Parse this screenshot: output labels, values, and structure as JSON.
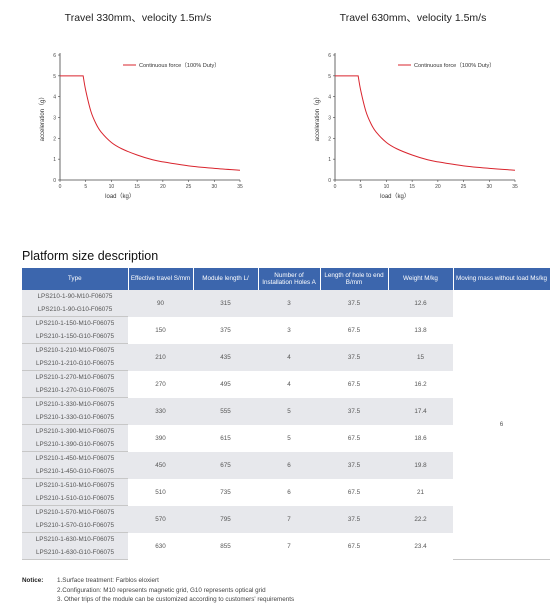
{
  "charts": [
    {
      "title": "Travel 330mm、velocity 1.5m/s",
      "legend": "Continuous force（100% Duty）",
      "ylabel": "acceleration（g）",
      "xlabel": "load（kg）",
      "curve_color": "#d9252e"
    },
    {
      "title": "Travel 630mm、velocity 1.5m/s",
      "legend": "Continuous force（100% Duty）",
      "ylabel": "acceleration（g）",
      "xlabel": "load（kg）",
      "curve_color": "#d9252e"
    }
  ],
  "chart_data": [
    {
      "type": "line",
      "title": "Travel 330mm、velocity 1.5m/s",
      "xlabel": "load（kg）",
      "ylabel": "acceleration（g）",
      "xlim": [
        0,
        35
      ],
      "ylim": [
        0,
        6
      ],
      "xticks": [
        "0",
        "5",
        "10",
        "15",
        "20",
        "25",
        "30",
        "35"
      ],
      "yticks": [
        "0",
        "1",
        "2",
        "3",
        "4",
        "5",
        "6"
      ],
      "legend_position": "top-right",
      "grid": false,
      "series": [
        {
          "name": "Continuous force（100% Duty）",
          "x": [
            0,
            4.5,
            5,
            6,
            7,
            8,
            10,
            12,
            15,
            18,
            20,
            25,
            30,
            35
          ],
          "y": [
            5,
            5,
            4.3,
            3.3,
            2.7,
            2.3,
            1.8,
            1.5,
            1.2,
            0.97,
            0.87,
            0.68,
            0.56,
            0.47
          ]
        }
      ]
    },
    {
      "type": "line",
      "title": "Travel 630mm、velocity 1.5m/s",
      "xlabel": "load（kg）",
      "ylabel": "acceleration（g）",
      "xlim": [
        0,
        35
      ],
      "ylim": [
        0,
        6
      ],
      "xticks": [
        "0",
        "5",
        "10",
        "15",
        "20",
        "25",
        "30",
        "35"
      ],
      "yticks": [
        "0",
        "1",
        "2",
        "3",
        "4",
        "5",
        "6"
      ],
      "legend_position": "top-right",
      "grid": false,
      "series": [
        {
          "name": "Continuous force（100% Duty）",
          "x": [
            0,
            4.5,
            5,
            6,
            7,
            8,
            10,
            12,
            15,
            18,
            20,
            25,
            30,
            35
          ],
          "y": [
            5,
            5,
            4.3,
            3.3,
            2.7,
            2.3,
            1.8,
            1.5,
            1.2,
            0.97,
            0.87,
            0.68,
            0.56,
            0.47
          ]
        }
      ]
    }
  ],
  "section_title": "Platform size description",
  "table": {
    "headers": [
      "Type",
      "Effective travel S/mm",
      "Module length L/",
      "Number of Installation Holes A",
      "Length of hole to end B/mm",
      "Weight M/kg",
      "Moving mass without load Ms/kg"
    ],
    "moving_mass": "6",
    "groups": [
      {
        "types": [
          "LPS210-1-90-M10-F06075",
          "LPS210-1-90-G10-F06075"
        ],
        "travel": "90",
        "length": "315",
        "holes": "3",
        "hole_end": "37.5",
        "weight": "12.6"
      },
      {
        "types": [
          "LPS210-1-150-M10-F06075",
          "LPS210-1-150-G10-F06075"
        ],
        "travel": "150",
        "length": "375",
        "holes": "3",
        "hole_end": "67.5",
        "weight": "13.8"
      },
      {
        "types": [
          "LPS210-1-210-M10-F06075",
          "LPS210-1-210-G10-F06075"
        ],
        "travel": "210",
        "length": "435",
        "holes": "4",
        "hole_end": "37.5",
        "weight": "15"
      },
      {
        "types": [
          "LPS210-1-270-M10-F06075",
          "LPS210-1-270-G10-F06075"
        ],
        "travel": "270",
        "length": "495",
        "holes": "4",
        "hole_end": "67.5",
        "weight": "16.2"
      },
      {
        "types": [
          "LPS210-1-330-M10-F06075",
          "LPS210-1-330-G10-F06075"
        ],
        "travel": "330",
        "length": "555",
        "holes": "5",
        "hole_end": "37.5",
        "weight": "17.4"
      },
      {
        "types": [
          "LPS210-1-390-M10-F06075",
          "LPS210-1-390-G10-F06075"
        ],
        "travel": "390",
        "length": "615",
        "holes": "5",
        "hole_end": "67.5",
        "weight": "18.6"
      },
      {
        "types": [
          "LPS210-1-450-M10-F06075",
          "LPS210-1-450-G10-F06075"
        ],
        "travel": "450",
        "length": "675",
        "holes": "6",
        "hole_end": "37.5",
        "weight": "19.8"
      },
      {
        "types": [
          "LPS210-1-510-M10-F06075",
          "LPS210-1-510-G10-F06075"
        ],
        "travel": "510",
        "length": "735",
        "holes": "6",
        "hole_end": "67.5",
        "weight": "21"
      },
      {
        "types": [
          "LPS210-1-570-M10-F06075",
          "LPS210-1-570-G10-F06075"
        ],
        "travel": "570",
        "length": "795",
        "holes": "7",
        "hole_end": "37.5",
        "weight": "22.2"
      },
      {
        "types": [
          "LPS210-1-630-M10-F06075",
          "LPS210-1-630-G10-F06075"
        ],
        "travel": "630",
        "length": "855",
        "holes": "7",
        "hole_end": "67.5",
        "weight": "23.4"
      }
    ]
  },
  "notice": {
    "label": "Notice:",
    "lines": [
      "1.Surface treatment: Farblos eloxiert",
      "2.Configuration: M10 represents magnetic grid, G10 represents optical grid",
      "3. Other trips of the module can be customized according to customers' requirements"
    ]
  }
}
